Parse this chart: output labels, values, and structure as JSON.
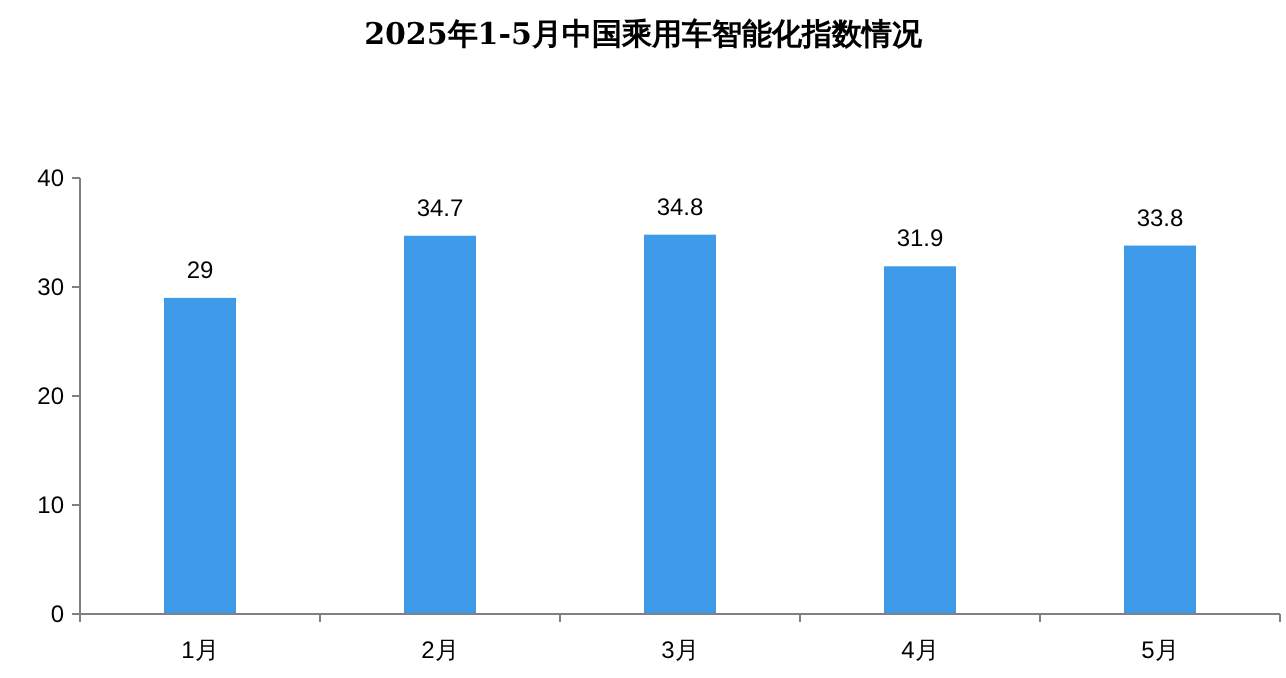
{
  "chart_data": {
    "type": "bar",
    "title": "2025年1-5月中国乘用车智能化指数情况",
    "categories": [
      "1月",
      "2月",
      "3月",
      "4月",
      "5月"
    ],
    "values": [
      29,
      34.7,
      34.8,
      31.9,
      33.8
    ],
    "color": "#3d9be9",
    "ylim": [
      0,
      40
    ],
    "yticks": [
      0,
      10,
      20,
      30,
      40
    ],
    "data_labels": true
  }
}
